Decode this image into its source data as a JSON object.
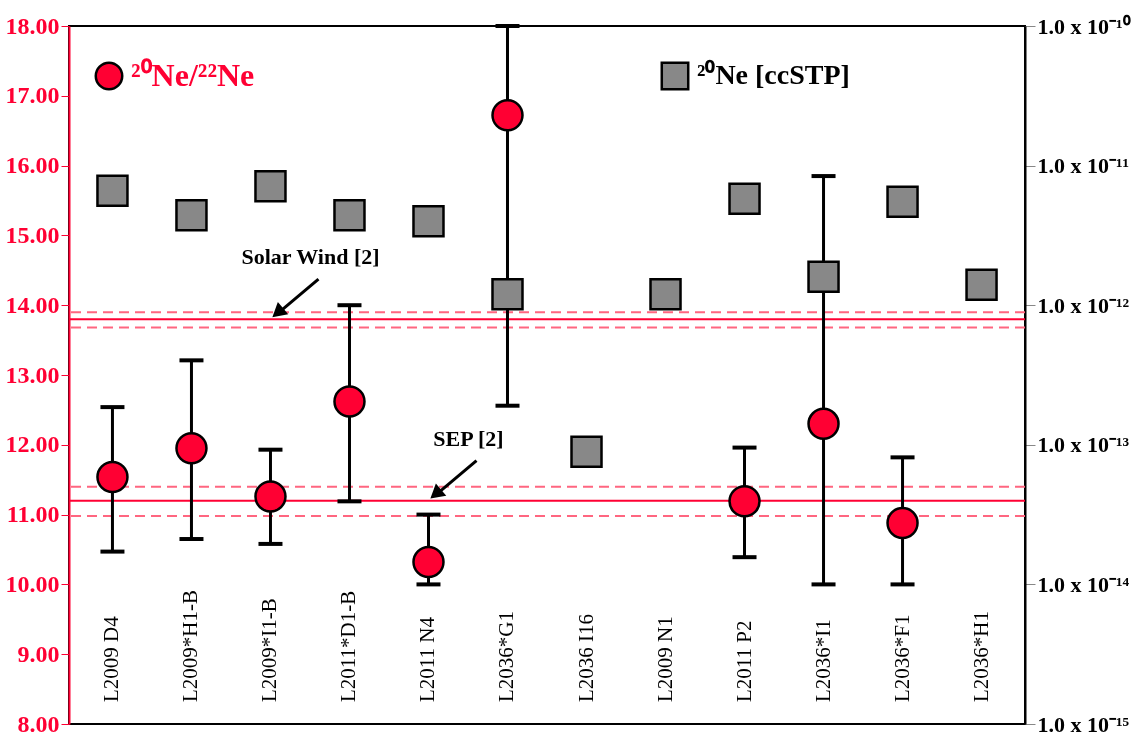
{
  "chart_data": {
    "type": "scatter",
    "categories": [
      "L2009 D4",
      "L2009*H1-B",
      "L2009*I1-B",
      "L2011*D1-B",
      "L2011 N4",
      "L2036*G1",
      "L2036 I16",
      "L2009 N1",
      "L2011 P2",
      "L2036*I1",
      "L2036*F1",
      "L2036*H1"
    ],
    "series": [
      {
        "name": "²⁰Ne/²²Ne",
        "type": "scatter",
        "marker": "circle",
        "color": "#ff0033",
        "values": [
          11.54,
          11.95,
          11.26,
          12.62,
          10.32,
          16.72,
          null,
          null,
          11.19,
          12.3,
          10.88,
          null
        ],
        "errors": [
          [
            10.47,
            12.54
          ],
          [
            10.65,
            13.21
          ],
          [
            10.58,
            11.93
          ],
          [
            11.19,
            14.0
          ],
          [
            10.0,
            11.0
          ],
          [
            12.56,
            18.0
          ],
          null,
          null,
          [
            10.39,
            11.96
          ],
          [
            10.0,
            15.85
          ],
          [
            10.0,
            11.82
          ],
          null
        ]
      },
      {
        "name": "²⁰Ne [ccSTP]",
        "type": "scatter",
        "marker": "square",
        "axis": "y2",
        "color": "#888888",
        "values": [
          6.6e-12,
          4.4e-12,
          7.1e-12,
          4.4e-12,
          4e-12,
          1.2e-12,
          8.9e-14,
          1.2e-12,
          5.8e-12,
          1.6e-12,
          5.5e-12,
          1.4e-12
        ]
      }
    ],
    "ylim": [
      8,
      18
    ],
    "yticks": [
      {
        "value": 8,
        "label": "8.00"
      },
      {
        "value": 9,
        "label": "9.00"
      },
      {
        "value": 10,
        "label": "10.00"
      },
      {
        "value": 11,
        "label": "11.00"
      },
      {
        "value": 12,
        "label": "12.00"
      },
      {
        "value": 13,
        "label": "13.00"
      },
      {
        "value": 14,
        "label": "14.00"
      },
      {
        "value": 15,
        "label": "15.00"
      },
      {
        "value": 16,
        "label": "16.00"
      },
      {
        "value": 17,
        "label": "17.00"
      },
      {
        "value": 18,
        "label": "18.00"
      }
    ],
    "y2lim": [
      1e-15,
      1e-10
    ],
    "y2ticks": [
      {
        "value": 1e-15,
        "label": "1.0 x 10⁻¹⁵"
      },
      {
        "value": 1e-14,
        "label": "1.0 x 10⁻¹⁴"
      },
      {
        "value": 1e-13,
        "label": "1.0 x 10⁻¹³"
      },
      {
        "value": 1e-12,
        "label": "1.0 x 10⁻¹²"
      },
      {
        "value": 1e-11,
        "label": "1.0 x 10⁻¹¹"
      },
      {
        "value": 1e-10,
        "label": "1.0 x 10⁻¹⁰"
      }
    ],
    "log": "y2",
    "grid": false,
    "legend": "top",
    "ref_lines": [
      {
        "axis": "y",
        "value": 13.8,
        "color": "#ff0033",
        "line_style": "solid"
      },
      {
        "axis": "y",
        "value": 13.9,
        "color": "#ff6680",
        "line_style": "dashed"
      },
      {
        "axis": "y",
        "value": 13.68,
        "color": "#ff6680",
        "line_style": "dashed"
      },
      {
        "axis": "y",
        "value": 11.2,
        "color": "#ff0033",
        "line_style": "solid"
      },
      {
        "axis": "y",
        "value": 11.4,
        "color": "#ff6680",
        "line_style": "dashed"
      },
      {
        "axis": "y",
        "value": 10.98,
        "color": "#ff6680",
        "line_style": "dashed"
      }
    ],
    "annotations": [
      {
        "text": "Solar Wind [2]",
        "x": "L2009*I1-B",
        "y": 13.8
      },
      {
        "text": "SEP [2]",
        "x": "L2011 N4",
        "y": 11.2
      }
    ]
  }
}
